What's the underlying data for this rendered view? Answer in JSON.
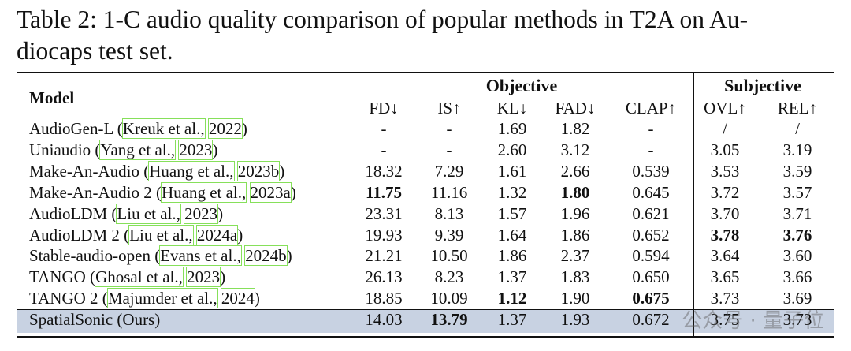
{
  "caption": [
    "Table 2: 1-C audio quality comparison of popular methods in T2A on Au-",
    "diocaps test set."
  ],
  "table": {
    "header": {
      "model": "Model",
      "groups": [
        "Objective",
        "Subjective"
      ],
      "columns": [
        "FD↓",
        "IS↑",
        "KL↓",
        "FAD↓",
        "CLAP↑",
        "OVL↑",
        "REL↑"
      ]
    },
    "rows": [
      {
        "model": [
          "AudioGen-L (",
          "Kreuk et al.,",
          "2022",
          ")"
        ],
        "cells": [
          "-",
          "-",
          "1.69",
          "1.82",
          "-",
          "/",
          "/"
        ]
      },
      {
        "model": [
          "Uniaudio (",
          "Yang et al.,",
          "2023",
          ")"
        ],
        "cells": [
          "-",
          "-",
          "2.60",
          "3.12",
          "-",
          "3.05",
          "3.19"
        ]
      },
      {
        "model": [
          "Make-An-Audio (",
          "Huang et al.,",
          "2023b",
          ")"
        ],
        "cells": [
          "18.32",
          "7.29",
          "1.61",
          "2.66",
          "0.539",
          "3.53",
          "3.59"
        ]
      },
      {
        "model": [
          "Make-An-Audio 2 (",
          "Huang et al.,",
          "2023a",
          ")"
        ],
        "cells": [
          "11.75",
          "11.16",
          "1.32",
          "1.80",
          "0.645",
          "3.72",
          "3.57"
        ]
      },
      {
        "model": [
          "AudioLDM (",
          "Liu et al.,",
          "2023",
          ")"
        ],
        "cells": [
          "23.31",
          "8.13",
          "1.57",
          "1.96",
          "0.621",
          "3.70",
          "3.71"
        ]
      },
      {
        "model": [
          "AudioLDM 2 (",
          "Liu et al.,",
          "2024a",
          ")"
        ],
        "cells": [
          "19.93",
          "9.39",
          "1.64",
          "1.86",
          "0.652",
          "3.78",
          "3.76"
        ]
      },
      {
        "model": [
          "Stable-audio-open (",
          "Evans et al.,",
          "2024b",
          ")"
        ],
        "cells": [
          "21.21",
          "10.50",
          "1.86",
          "2.37",
          "0.594",
          "3.64",
          "3.60"
        ]
      },
      {
        "model": [
          "TANGO (",
          "Ghosal et al.,",
          "2023",
          ")"
        ],
        "cells": [
          "26.13",
          "8.23",
          "1.37",
          "1.83",
          "0.650",
          "3.65",
          "3.66"
        ]
      },
      {
        "model": [
          "TANGO 2 (",
          "Majumder et al.,",
          "2024",
          ")"
        ],
        "cells": [
          "18.85",
          "10.09",
          "1.12",
          "1.90",
          "0.675",
          "3.73",
          "3.69"
        ]
      },
      {
        "model": [
          "SpatialSonic (Ours)"
        ],
        "cells": [
          "14.03",
          "13.79",
          "1.37",
          "1.93",
          "0.672",
          "3.75",
          "3.73"
        ]
      }
    ]
  },
  "watermark": "公众号 · 量子位"
}
